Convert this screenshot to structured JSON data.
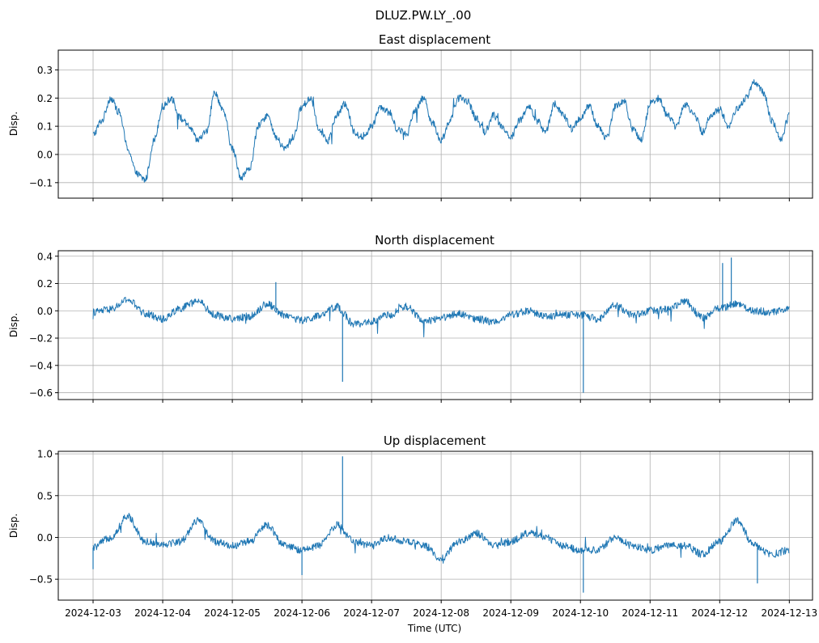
{
  "figure": {
    "suptitle": "DLUZ.PW.LY_.00",
    "xlabel": "Time (UTC)"
  },
  "colors": {
    "line": "#1f77b4",
    "grid": "#b0b0b0",
    "axes": "#000000",
    "background": "#ffffff"
  },
  "chart_data": [
    {
      "type": "line",
      "title": "East displacement",
      "xlabel": "",
      "ylabel": "Disp.",
      "xlim": [
        "2024-12-02T12:00",
        "2024-12-13T08:00"
      ],
      "ylim": [
        -0.155,
        0.37
      ],
      "yticks": [
        -0.1,
        0.0,
        0.1,
        0.2,
        0.3
      ],
      "ytick_labels": [
        "−0.1",
        "0.0",
        "0.1",
        "0.2",
        "0.3"
      ],
      "xticks_labeled": false,
      "grid": true,
      "series": [
        {
          "x": [
            "2024-12-03T00:00",
            "2024-12-03T03:00",
            "2024-12-03T06:00",
            "2024-12-03T09:00",
            "2024-12-03T12:00",
            "2024-12-03T15:00",
            "2024-12-03T18:00",
            "2024-12-03T21:00",
            "2024-12-04T00:00",
            "2024-12-04T03:00",
            "2024-12-04T06:00",
            "2024-12-04T09:00",
            "2024-12-04T12:00",
            "2024-12-04T15:00",
            "2024-12-04T18:00",
            "2024-12-04T21:00",
            "2024-12-05T00:00",
            "2024-12-05T03:00",
            "2024-12-05T06:00",
            "2024-12-05T09:00",
            "2024-12-05T12:00",
            "2024-12-05T15:00",
            "2024-12-05T18:00",
            "2024-12-05T21:00",
            "2024-12-06T00:00",
            "2024-12-06T03:00",
            "2024-12-06T06:00",
            "2024-12-06T09:00",
            "2024-12-06T12:00",
            "2024-12-06T15:00",
            "2024-12-06T18:00",
            "2024-12-06T21:00",
            "2024-12-07T00:00",
            "2024-12-07T03:00",
            "2024-12-07T06:00",
            "2024-12-07T09:00",
            "2024-12-07T12:00",
            "2024-12-07T15:00",
            "2024-12-07T18:00",
            "2024-12-07T21:00",
            "2024-12-08T00:00",
            "2024-12-08T03:00",
            "2024-12-08T06:00",
            "2024-12-08T09:00",
            "2024-12-08T12:00",
            "2024-12-08T15:00",
            "2024-12-08T18:00",
            "2024-12-08T21:00",
            "2024-12-09T00:00",
            "2024-12-09T03:00",
            "2024-12-09T06:00",
            "2024-12-09T09:00",
            "2024-12-09T12:00",
            "2024-12-09T15:00",
            "2024-12-09T18:00",
            "2024-12-09T21:00",
            "2024-12-10T00:00",
            "2024-12-10T03:00",
            "2024-12-10T06:00",
            "2024-12-10T09:00",
            "2024-12-10T12:00",
            "2024-12-10T15:00",
            "2024-12-10T18:00",
            "2024-12-10T21:00",
            "2024-12-11T00:00",
            "2024-12-11T03:00",
            "2024-12-11T06:00",
            "2024-12-11T09:00",
            "2024-12-11T12:00",
            "2024-12-11T15:00",
            "2024-12-11T18:00",
            "2024-12-11T21:00",
            "2024-12-12T00:00",
            "2024-12-12T03:00",
            "2024-12-12T06:00",
            "2024-12-12T09:00",
            "2024-12-12T12:00",
            "2024-12-12T15:00",
            "2024-12-12T18:00",
            "2024-12-12T21:00",
            "2024-12-13T00:00"
          ],
          "y": [
            0.07,
            0.12,
            0.2,
            0.15,
            0.02,
            -0.07,
            -0.09,
            0.05,
            0.17,
            0.2,
            0.13,
            0.1,
            0.05,
            0.08,
            0.22,
            0.15,
            0.02,
            -0.08,
            -0.05,
            0.1,
            0.14,
            0.06,
            0.02,
            0.06,
            0.17,
            0.2,
            0.09,
            0.05,
            0.14,
            0.18,
            0.08,
            0.06,
            0.1,
            0.17,
            0.15,
            0.09,
            0.07,
            0.16,
            0.2,
            0.11,
            0.05,
            0.12,
            0.2,
            0.19,
            0.13,
            0.08,
            0.14,
            0.1,
            0.06,
            0.12,
            0.17,
            0.12,
            0.08,
            0.18,
            0.14,
            0.09,
            0.13,
            0.17,
            0.1,
            0.06,
            0.17,
            0.19,
            0.09,
            0.05,
            0.18,
            0.2,
            0.14,
            0.1,
            0.18,
            0.15,
            0.08,
            0.14,
            0.16,
            0.1,
            0.16,
            0.2,
            0.26,
            0.22,
            0.12,
            0.05,
            0.14
          ]
        }
      ]
    },
    {
      "type": "line",
      "title": "North displacement",
      "xlabel": "",
      "ylabel": "Disp.",
      "xlim": [
        "2024-12-02T12:00",
        "2024-12-13T08:00"
      ],
      "ylim": [
        -0.65,
        0.44
      ],
      "yticks": [
        -0.6,
        -0.4,
        -0.2,
        0.0,
        0.2,
        0.4
      ],
      "ytick_labels": [
        "−0.6",
        "−0.4",
        "−0.2",
        "0.0",
        "0.2",
        "0.4"
      ],
      "xticks_labeled": false,
      "grid": true,
      "series": [
        {
          "x": [
            "2024-12-03T00:00",
            "2024-12-03T06:00",
            "2024-12-03T12:00",
            "2024-12-03T18:00",
            "2024-12-04T00:00",
            "2024-12-04T06:00",
            "2024-12-04T12:00",
            "2024-12-04T18:00",
            "2024-12-05T00:00",
            "2024-12-05T06:00",
            "2024-12-05T12:00",
            "2024-12-05T18:00",
            "2024-12-06T00:00",
            "2024-12-06T06:00",
            "2024-12-06T12:00",
            "2024-12-06T18:00",
            "2024-12-07T00:00",
            "2024-12-07T06:00",
            "2024-12-07T12:00",
            "2024-12-07T18:00",
            "2024-12-08T00:00",
            "2024-12-08T06:00",
            "2024-12-08T12:00",
            "2024-12-08T18:00",
            "2024-12-09T00:00",
            "2024-12-09T06:00",
            "2024-12-09T12:00",
            "2024-12-09T18:00",
            "2024-12-10T00:00",
            "2024-12-10T06:00",
            "2024-12-10T12:00",
            "2024-12-10T18:00",
            "2024-12-11T00:00",
            "2024-12-11T06:00",
            "2024-12-11T12:00",
            "2024-12-11T18:00",
            "2024-12-12T00:00",
            "2024-12-12T06:00",
            "2024-12-12T12:00",
            "2024-12-12T18:00",
            "2024-12-13T00:00"
          ],
          "y": [
            -0.01,
            0.01,
            0.08,
            -0.02,
            -0.06,
            0.02,
            0.07,
            -0.03,
            -0.06,
            -0.04,
            0.05,
            -0.03,
            -0.07,
            -0.04,
            0.03,
            -0.1,
            -0.08,
            -0.03,
            0.03,
            -0.08,
            -0.05,
            -0.02,
            -0.06,
            -0.08,
            -0.03,
            0.0,
            -0.04,
            -0.03,
            -0.03,
            -0.06,
            0.04,
            -0.03,
            0.0,
            0.01,
            0.07,
            -0.05,
            0.02,
            0.05,
            0.0,
            -0.01,
            0.02
          ],
          "spikes": [
            {
              "x": "2024-12-06T14:00",
              "y": -0.52
            },
            {
              "x": "2024-12-10T01:00",
              "y": -0.6
            },
            {
              "x": "2024-12-12T01:00",
              "y": 0.35
            },
            {
              "x": "2024-12-12T04:00",
              "y": 0.39
            },
            {
              "x": "2024-12-05T15:00",
              "y": 0.21
            }
          ]
        }
      ]
    },
    {
      "type": "line",
      "title": "Up displacement",
      "xlabel": "Time (UTC)",
      "ylabel": "Disp.",
      "xlim": [
        "2024-12-02T12:00",
        "2024-12-13T08:00"
      ],
      "ylim": [
        -0.75,
        1.03
      ],
      "yticks": [
        -0.5,
        0.0,
        0.5,
        1.0
      ],
      "ytick_labels": [
        "−0.5",
        "0.0",
        "0.5",
        "1.0"
      ],
      "xticks": [
        "2024-12-03",
        "2024-12-04",
        "2024-12-05",
        "2024-12-06",
        "2024-12-07",
        "2024-12-08",
        "2024-12-09",
        "2024-12-10",
        "2024-12-11",
        "2024-12-12",
        "2024-12-13"
      ],
      "xticks_labeled": true,
      "grid": true,
      "series": [
        {
          "x": [
            "2024-12-03T00:00",
            "2024-12-03T06:00",
            "2024-12-03T12:00",
            "2024-12-03T18:00",
            "2024-12-04T00:00",
            "2024-12-04T06:00",
            "2024-12-04T12:00",
            "2024-12-04T18:00",
            "2024-12-05T00:00",
            "2024-12-05T06:00",
            "2024-12-05T12:00",
            "2024-12-05T18:00",
            "2024-12-06T00:00",
            "2024-12-06T06:00",
            "2024-12-06T12:00",
            "2024-12-06T18:00",
            "2024-12-07T00:00",
            "2024-12-07T06:00",
            "2024-12-07T12:00",
            "2024-12-07T18:00",
            "2024-12-08T00:00",
            "2024-12-08T06:00",
            "2024-12-08T12:00",
            "2024-12-08T18:00",
            "2024-12-09T00:00",
            "2024-12-09T06:00",
            "2024-12-09T12:00",
            "2024-12-09T18:00",
            "2024-12-10T00:00",
            "2024-12-10T06:00",
            "2024-12-10T12:00",
            "2024-12-10T18:00",
            "2024-12-11T00:00",
            "2024-12-11T06:00",
            "2024-12-11T12:00",
            "2024-12-11T18:00",
            "2024-12-12T00:00",
            "2024-12-12T06:00",
            "2024-12-12T12:00",
            "2024-12-12T18:00",
            "2024-12-13T00:00"
          ],
          "y": [
            -0.12,
            0.0,
            0.25,
            -0.05,
            -0.08,
            -0.05,
            0.2,
            -0.05,
            -0.1,
            -0.05,
            0.15,
            -0.1,
            -0.15,
            -0.1,
            0.15,
            -0.05,
            -0.1,
            0.0,
            -0.05,
            -0.1,
            -0.25,
            -0.05,
            0.05,
            -0.1,
            -0.05,
            0.05,
            0.0,
            -0.1,
            -0.15,
            -0.15,
            0.0,
            -0.1,
            -0.15,
            -0.1,
            -0.1,
            -0.2,
            -0.05,
            0.2,
            -0.1,
            -0.2,
            -0.15
          ],
          "spikes": [
            {
              "x": "2024-12-06T14:00",
              "y": 0.97
            },
            {
              "x": "2024-12-10T01:00",
              "y": -0.66
            },
            {
              "x": "2024-12-12T13:00",
              "y": -0.55
            },
            {
              "x": "2024-12-06T00:00",
              "y": -0.45
            },
            {
              "x": "2024-12-03T00:00",
              "y": -0.38
            }
          ]
        }
      ]
    }
  ]
}
